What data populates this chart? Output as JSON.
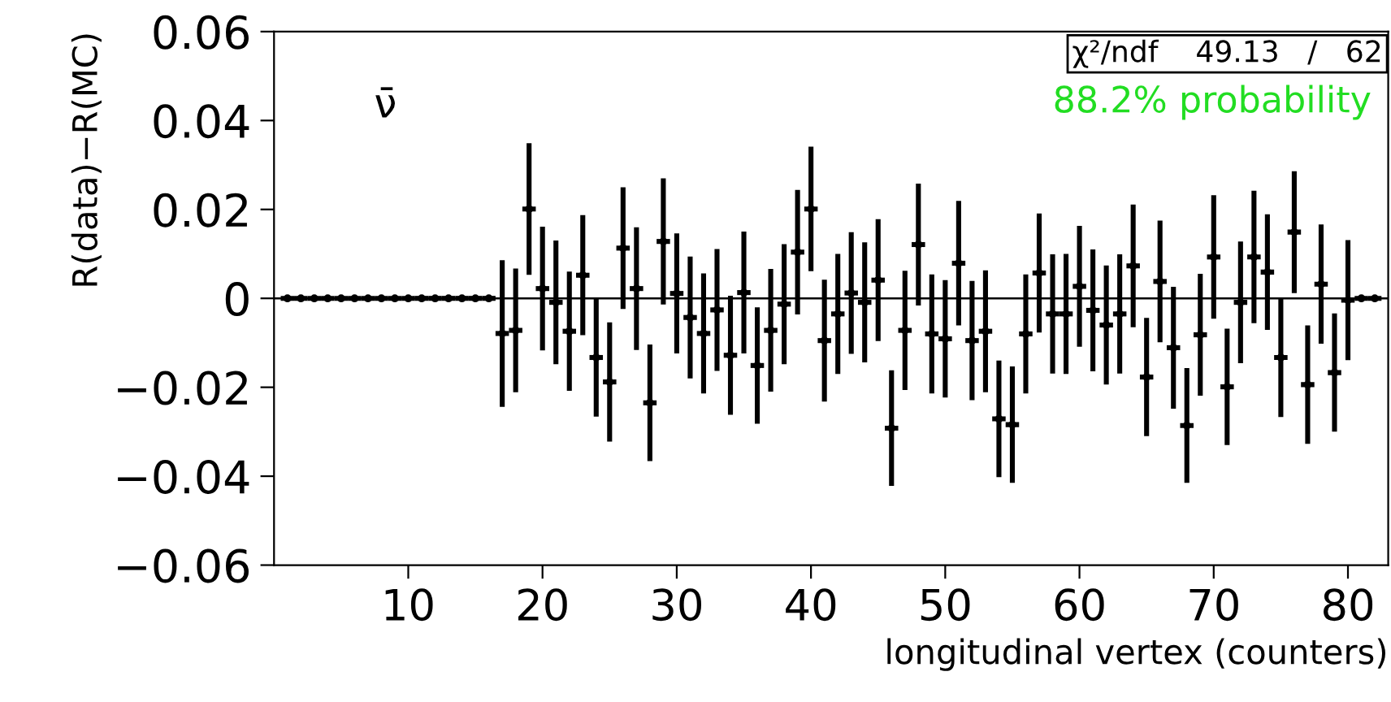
{
  "chart_data": {
    "type": "scatter",
    "xlabel": "longitudinal vertex (counters)",
    "ylabel": "R(data)−R(MC)",
    "x": [
      1,
      2,
      3,
      4,
      5,
      6,
      7,
      8,
      9,
      10,
      11,
      12,
      13,
      14,
      15,
      16,
      17,
      18,
      19,
      20,
      21,
      22,
      23,
      24,
      25,
      26,
      27,
      28,
      29,
      30,
      31,
      32,
      33,
      34,
      35,
      36,
      37,
      38,
      39,
      40,
      41,
      42,
      43,
      44,
      45,
      46,
      47,
      48,
      49,
      50,
      51,
      52,
      53,
      54,
      55,
      56,
      57,
      58,
      59,
      60,
      61,
      62,
      63,
      64,
      65,
      66,
      67,
      68,
      69,
      70,
      71,
      72,
      73,
      74,
      75,
      76,
      77,
      78,
      79,
      80,
      81,
      82
    ],
    "values": [
      0,
      0,
      0,
      0,
      0,
      0,
      0,
      0,
      0,
      0,
      0,
      0,
      0,
      0,
      0,
      0,
      -0.0079,
      -0.0072,
      0.0201,
      0.0022,
      -0.0009,
      -0.0074,
      0.0052,
      -0.0133,
      -0.0188,
      0.0113,
      0.0022,
      -0.0235,
      0.0128,
      0.0011,
      -0.0043,
      -0.0079,
      -0.0026,
      -0.0128,
      0.0013,
      -0.0151,
      -0.0072,
      -0.0013,
      0.0104,
      0.0201,
      -0.0095,
      -0.0035,
      0.0012,
      -0.0009,
      0.0041,
      -0.0292,
      -0.0072,
      0.0121,
      -0.008,
      -0.0091,
      0.0079,
      -0.0095,
      -0.0074,
      -0.0271,
      -0.0284,
      -0.008,
      0.0057,
      -0.0035,
      -0.0035,
      0.0027,
      -0.0027,
      -0.006,
      -0.0035,
      0.0073,
      -0.0177,
      0.0038,
      -0.0111,
      -0.0286,
      -0.0082,
      0.0093,
      -0.0199,
      -0.0009,
      0.0093,
      0.0059,
      -0.0133,
      0.0149,
      -0.0194,
      0.0032,
      -0.0167,
      -0.0004,
      0,
      0
    ],
    "errors": [
      0,
      0,
      0,
      0,
      0,
      0,
      0,
      0,
      0,
      0,
      0,
      0,
      0,
      0,
      0,
      0,
      0.0165,
      0.0139,
      0.0148,
      0.0139,
      0.0139,
      0.0134,
      0.0135,
      0.0133,
      0.0134,
      0.0137,
      0.0138,
      0.0131,
      0.0142,
      0.0135,
      0.0137,
      0.0135,
      0.0137,
      0.0134,
      0.0137,
      0.0131,
      0.0138,
      0.0135,
      0.014,
      0.014,
      0.0137,
      0.0135,
      0.0137,
      0.0135,
      0.0137,
      0.013,
      0.0134,
      0.0137,
      0.0134,
      0.0132,
      0.014,
      0.0134,
      0.0137,
      0.0131,
      0.0131,
      0.0134,
      0.0134,
      0.0134,
      0.0135,
      0.0136,
      0.0137,
      0.0134,
      0.0134,
      0.0138,
      0.0133,
      0.0137,
      0.0137,
      0.0129,
      0.0137,
      0.0139,
      0.0131,
      0.0137,
      0.0149,
      0.013,
      0.0134,
      0.0137,
      0.0133,
      0.0134,
      0.0133,
      0.0135,
      0,
      0
    ],
    "xerrors": [
      0.5,
      0.5,
      0.5,
      0.5,
      0.5,
      0.5,
      0.5,
      0.5,
      0.5,
      0.5,
      0.5,
      0.5,
      0.5,
      0.5,
      0.5,
      0.5,
      0.5,
      0.5,
      0.5,
      0.5,
      0.5,
      0.5,
      0.5,
      0.5,
      0.5,
      0.5,
      0.5,
      0.5,
      0.5,
      0.5,
      0.5,
      0.5,
      0.5,
      0.5,
      0.5,
      0.5,
      0.5,
      0.5,
      0.5,
      0.5,
      0.5,
      0.5,
      0.5,
      0.5,
      0.5,
      0.5,
      0.5,
      0.5,
      0.5,
      0.5,
      0.5,
      0.5,
      0.5,
      0.5,
      0.5,
      0.5,
      0.5,
      0.5,
      0.5,
      0.5,
      0.5,
      0.5,
      0.5,
      0.5,
      0.5,
      0.5,
      0.5,
      0.5,
      0.5,
      0.5,
      0.5,
      0.5,
      0.5,
      0.5,
      0.5,
      0.5,
      0.5,
      0.5,
      0.5,
      0.5,
      0.5,
      0.5
    ],
    "color": "#000000",
    "grid": false,
    "legend": false,
    "xlim": [
      0,
      83
    ],
    "xticks": [
      10,
      20,
      30,
      40,
      50,
      60,
      70,
      80
    ],
    "ylim": [
      -0.06,
      0.06
    ],
    "yticks": [
      {
        "value": -0.06,
        "label": "−0.06"
      },
      {
        "value": -0.04,
        "label": "−0.04"
      },
      {
        "value": -0.02,
        "label": "−0.02"
      },
      0,
      0.02,
      0.04,
      0.06
    ],
    "ref_lines": [
      {
        "axis": "y",
        "value": 0,
        "color": "#000000"
      }
    ],
    "annotations": [
      "ν̄",
      "χ²/ndf    49.13   /   62",
      "88.2% probability"
    ]
  }
}
